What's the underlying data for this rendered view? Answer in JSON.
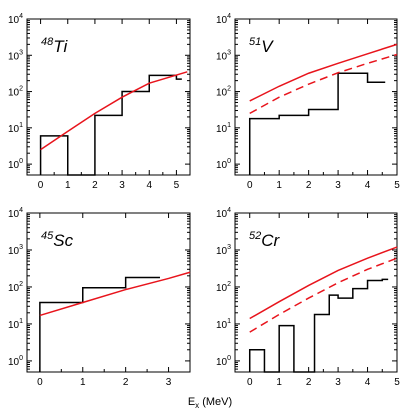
{
  "chart_data": [
    {
      "type": "line",
      "label": {
        "mass": "48",
        "symbol": "Ti"
      },
      "xlim": [
        -0.5,
        5.5
      ],
      "xticks": [
        0,
        1,
        2,
        3,
        4,
        5
      ],
      "ylim_log10": [
        -0.3,
        4
      ],
      "yticks_exp": [
        0,
        1,
        2,
        3,
        4
      ],
      "histogram": [
        {
          "x0": 0,
          "x1": 1,
          "y": 6
        },
        {
          "x0": 1,
          "x1": 2,
          "y": 0.5
        },
        {
          "x0": 2,
          "x1": 3,
          "y": 22
        },
        {
          "x0": 3,
          "x1": 4,
          "y": 100
        },
        {
          "x0": 4,
          "x1": 5,
          "y": 280
        },
        {
          "x0": 5,
          "x1": 5.2,
          "y": 220
        }
      ],
      "series": [
        {
          "style": "solid",
          "x": [
            0,
            1,
            2,
            3,
            4,
            5.4
          ],
          "y": [
            2.5,
            8,
            25,
            70,
            170,
            350
          ]
        }
      ]
    },
    {
      "type": "line",
      "label": {
        "mass": "51",
        "symbol": "V"
      },
      "xlim": [
        -0.5,
        5
      ],
      "xticks": [
        0,
        1,
        2,
        3,
        4,
        5
      ],
      "ylim_log10": [
        -0.3,
        4
      ],
      "yticks_exp": [
        0,
        1,
        2,
        3,
        4
      ],
      "histogram": [
        {
          "x0": 0,
          "x1": 1,
          "y": 18
        },
        {
          "x0": 1,
          "x1": 2,
          "y": 22
        },
        {
          "x0": 2,
          "x1": 3,
          "y": 32
        },
        {
          "x0": 3,
          "x1": 4,
          "y": 320
        },
        {
          "x0": 4,
          "x1": 4.6,
          "y": 180
        }
      ],
      "series": [
        {
          "style": "solid",
          "x": [
            0,
            1,
            2,
            3,
            4,
            5
          ],
          "y": [
            55,
            140,
            320,
            600,
            1100,
            2000
          ]
        },
        {
          "style": "dashed",
          "x": [
            0,
            1,
            2,
            3,
            4,
            5
          ],
          "y": [
            25,
            70,
            160,
            330,
            600,
            1050
          ]
        }
      ]
    },
    {
      "type": "line",
      "label": {
        "mass": "45",
        "symbol": "Sc"
      },
      "xlim": [
        -0.3,
        3.5
      ],
      "xticks": [
        0,
        1,
        2,
        3
      ],
      "ylim_log10": [
        -0.3,
        4
      ],
      "yticks_exp": [
        0,
        1,
        2,
        3,
        4
      ],
      "histogram": [
        {
          "x0": 0,
          "x1": 1,
          "y": 38
        },
        {
          "x0": 1,
          "x1": 2,
          "y": 95
        },
        {
          "x0": 2,
          "x1": 2.8,
          "y": 180
        }
      ],
      "series": [
        {
          "style": "solid",
          "x": [
            0,
            1,
            2,
            3,
            3.5
          ],
          "y": [
            17,
            38,
            85,
            170,
            250
          ]
        }
      ]
    },
    {
      "type": "line",
      "label": {
        "mass": "52",
        "symbol": "Cr"
      },
      "xlim": [
        -0.5,
        5
      ],
      "xticks": [
        0,
        1,
        2,
        3,
        4,
        5
      ],
      "ylim_log10": [
        -0.3,
        4
      ],
      "yticks_exp": [
        0,
        1,
        2,
        3,
        4
      ],
      "histogram": [
        {
          "x0": 0,
          "x1": 0.5,
          "y": 2
        },
        {
          "x0": 0.5,
          "x1": 1,
          "y": 0.5
        },
        {
          "x0": 1,
          "x1": 1.5,
          "y": 9
        },
        {
          "x0": 1.5,
          "x1": 2.2,
          "y": 0.5
        },
        {
          "x0": 2.2,
          "x1": 2.7,
          "y": 18
        },
        {
          "x0": 2.7,
          "x1": 3,
          "y": 60
        },
        {
          "x0": 3,
          "x1": 3.5,
          "y": 50
        },
        {
          "x0": 3.5,
          "x1": 4,
          "y": 90
        },
        {
          "x0": 4,
          "x1": 4.5,
          "y": 150
        },
        {
          "x0": 4.5,
          "x1": 4.7,
          "y": 160
        }
      ],
      "series": [
        {
          "style": "solid",
          "x": [
            0,
            1,
            2,
            3,
            4,
            5
          ],
          "y": [
            14,
            40,
            110,
            280,
            600,
            1200
          ]
        },
        {
          "style": "dashed",
          "x": [
            0,
            1,
            2,
            3,
            4,
            5
          ],
          "y": [
            6,
            18,
            50,
            130,
            300,
            600
          ]
        }
      ]
    }
  ],
  "xaxis_title": {
    "main": "E",
    "sub": "x",
    "units": " (MeV)"
  },
  "y_tick_base": "10",
  "colors": {
    "theory": "#e8141c",
    "histogram": "#000000",
    "frame": "#000000"
  }
}
